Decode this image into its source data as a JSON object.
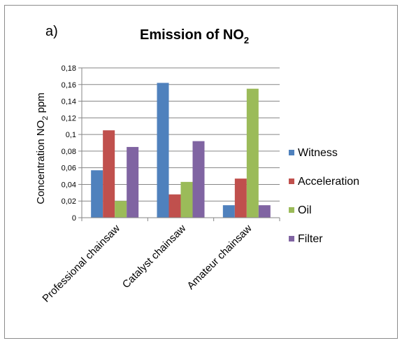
{
  "chart_data": {
    "type": "bar",
    "panel_label": "a)",
    "title": "Emission of NO",
    "title_subscript": "2",
    "ylabel": "Concentration NO",
    "ylabel_subscript": "2",
    "ylabel_suffix": " ppm",
    "xlabel": "",
    "ylim": [
      0,
      0.18
    ],
    "yticks": [
      0,
      0.02,
      0.04,
      0.06,
      0.08,
      0.1,
      0.12,
      0.14,
      0.16,
      0.18
    ],
    "ytick_labels": [
      "0",
      "0,02",
      "0,04",
      "0,06",
      "0,08",
      "0,1",
      "0,12",
      "0,14",
      "0,16",
      "0,18"
    ],
    "grid": true,
    "legend_position": "right",
    "categories": [
      "Professional chainsaw",
      "Catalyst chainsaw",
      "Amateur chainsaw"
    ],
    "series": [
      {
        "name": "Witness",
        "color": "#4f81bd",
        "values": [
          0.057,
          0.162,
          0.015
        ]
      },
      {
        "name": "Acceleration",
        "color": "#c0504d",
        "values": [
          0.105,
          0.028,
          0.047
        ]
      },
      {
        "name": "Oil",
        "color": "#9bbb59",
        "values": [
          0.02,
          0.043,
          0.155
        ]
      },
      {
        "name": "Filter",
        "color": "#8064a2",
        "values": [
          0.085,
          0.092,
          0.015
        ]
      }
    ]
  }
}
